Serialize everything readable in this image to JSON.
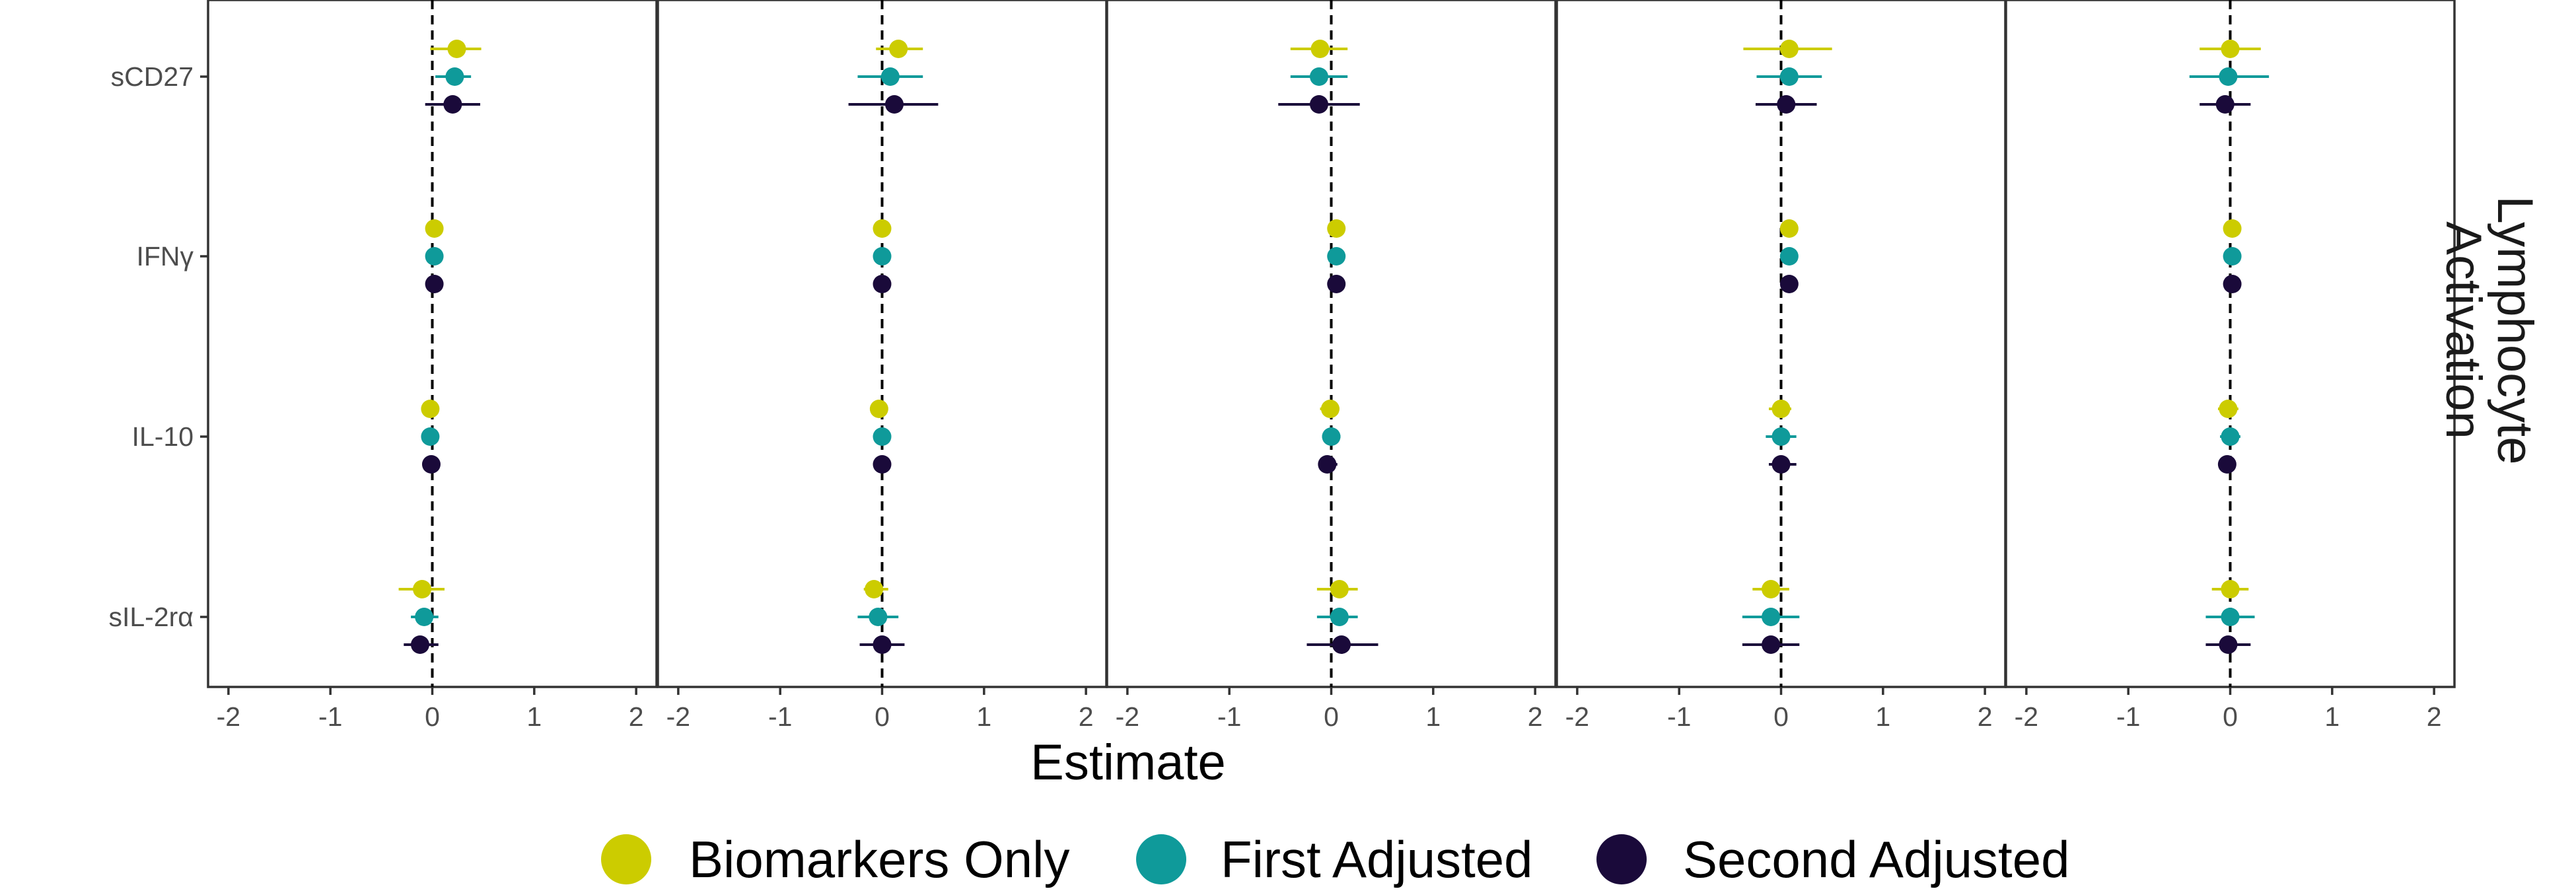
{
  "chart_data": {
    "type": "scatter",
    "subtype": "forest-plot with error bars, faceted into 5 panels",
    "xlabel": "Estimate",
    "ylabel": "",
    "xlim": [
      -2.2,
      2.2
    ],
    "x_ticks": [
      "-2",
      "-1",
      "0",
      "1",
      "2"
    ],
    "reference_line_x": 0,
    "grid": false,
    "row_strip_label": "Lymphocyte Activation",
    "categories": [
      "sCD27",
      "IFNγ",
      "IL-10",
      "sIL-2rα"
    ],
    "legend": {
      "placement": "bottom",
      "items": [
        {
          "label": "Biomarkers Only",
          "color": "#cccc00"
        },
        {
          "label": "First Adjusted",
          "color": "#0f9a9a"
        },
        {
          "label": "Second Adjusted",
          "color": "#1a0a3a"
        }
      ]
    },
    "series_colors": [
      "#cccc00",
      "#0f9a9a",
      "#1a0a3a"
    ],
    "panels": [
      {
        "rows": [
          {
            "category": "sCD27",
            "estimates": [
              {
                "x": 0.24,
                "lo": -0.02,
                "hi": 0.48
              },
              {
                "x": 0.22,
                "lo": 0.03,
                "hi": 0.38
              },
              {
                "x": 0.2,
                "lo": -0.07,
                "hi": 0.47
              }
            ]
          },
          {
            "category": "IFNγ",
            "estimates": [
              {
                "x": 0.02,
                "lo": -0.02,
                "hi": 0.06
              },
              {
                "x": 0.02,
                "lo": -0.02,
                "hi": 0.06
              },
              {
                "x": 0.02,
                "lo": -0.02,
                "hi": 0.06
              }
            ]
          },
          {
            "category": "IL-10",
            "estimates": [
              {
                "x": -0.02,
                "lo": -0.1,
                "hi": 0.05
              },
              {
                "x": -0.02,
                "lo": -0.1,
                "hi": 0.05
              },
              {
                "x": -0.01,
                "lo": -0.09,
                "hi": 0.06
              }
            ]
          },
          {
            "category": "sIL-2rα",
            "estimates": [
              {
                "x": -0.1,
                "lo": -0.33,
                "hi": 0.12
              },
              {
                "x": -0.08,
                "lo": -0.21,
                "hi": 0.06
              },
              {
                "x": -0.12,
                "lo": -0.28,
                "hi": 0.06
              }
            ]
          }
        ]
      },
      {
        "rows": [
          {
            "category": "sCD27",
            "estimates": [
              {
                "x": 0.16,
                "lo": -0.06,
                "hi": 0.4
              },
              {
                "x": 0.08,
                "lo": -0.24,
                "hi": 0.4
              },
              {
                "x": 0.12,
                "lo": -0.33,
                "hi": 0.55
              }
            ]
          },
          {
            "category": "IFNγ",
            "estimates": [
              {
                "x": 0.0,
                "lo": -0.04,
                "hi": 0.04
              },
              {
                "x": 0.0,
                "lo": -0.04,
                "hi": 0.04
              },
              {
                "x": 0.0,
                "lo": -0.04,
                "hi": 0.04
              }
            ]
          },
          {
            "category": "IL-10",
            "estimates": [
              {
                "x": -0.03,
                "lo": -0.1,
                "hi": 0.04
              },
              {
                "x": 0.0,
                "lo": -0.07,
                "hi": 0.07
              },
              {
                "x": 0.0,
                "lo": -0.07,
                "hi": 0.07
              }
            ]
          },
          {
            "category": "sIL-2rα",
            "estimates": [
              {
                "x": -0.08,
                "lo": -0.18,
                "hi": 0.06
              },
              {
                "x": -0.04,
                "lo": -0.24,
                "hi": 0.16
              },
              {
                "x": 0.0,
                "lo": -0.22,
                "hi": 0.22
              }
            ]
          }
        ]
      },
      {
        "rows": [
          {
            "category": "sCD27",
            "estimates": [
              {
                "x": -0.11,
                "lo": -0.4,
                "hi": 0.16
              },
              {
                "x": -0.12,
                "lo": -0.4,
                "hi": 0.16
              },
              {
                "x": -0.12,
                "lo": -0.52,
                "hi": 0.28
              }
            ]
          },
          {
            "category": "IFNγ",
            "estimates": [
              {
                "x": 0.05,
                "lo": 0.01,
                "hi": 0.09
              },
              {
                "x": 0.05,
                "lo": 0.01,
                "hi": 0.09
              },
              {
                "x": 0.05,
                "lo": 0.01,
                "hi": 0.09
              }
            ]
          },
          {
            "category": "IL-10",
            "estimates": [
              {
                "x": -0.01,
                "lo": -0.11,
                "hi": 0.08
              },
              {
                "x": 0.0,
                "lo": -0.09,
                "hi": 0.09
              },
              {
                "x": -0.04,
                "lo": -0.12,
                "hi": 0.06
              }
            ]
          },
          {
            "category": "sIL-2rα",
            "estimates": [
              {
                "x": 0.08,
                "lo": -0.14,
                "hi": 0.26
              },
              {
                "x": 0.08,
                "lo": -0.14,
                "hi": 0.26
              },
              {
                "x": 0.1,
                "lo": -0.24,
                "hi": 0.46
              }
            ]
          }
        ]
      },
      {
        "rows": [
          {
            "category": "sCD27",
            "estimates": [
              {
                "x": 0.08,
                "lo": -0.37,
                "hi": 0.5
              },
              {
                "x": 0.08,
                "lo": -0.24,
                "hi": 0.4
              },
              {
                "x": 0.05,
                "lo": -0.25,
                "hi": 0.35
              }
            ]
          },
          {
            "category": "IFNγ",
            "estimates": [
              {
                "x": 0.08,
                "lo": 0.04,
                "hi": 0.12
              },
              {
                "x": 0.08,
                "lo": 0.04,
                "hi": 0.12
              },
              {
                "x": 0.08,
                "lo": 0.04,
                "hi": 0.12
              }
            ]
          },
          {
            "category": "IL-10",
            "estimates": [
              {
                "x": 0.0,
                "lo": -0.12,
                "hi": 0.1
              },
              {
                "x": 0.0,
                "lo": -0.15,
                "hi": 0.15
              },
              {
                "x": 0.0,
                "lo": -0.12,
                "hi": 0.15
              }
            ]
          },
          {
            "category": "sIL-2rα",
            "estimates": [
              {
                "x": -0.1,
                "lo": -0.28,
                "hi": 0.08
              },
              {
                "x": -0.1,
                "lo": -0.38,
                "hi": 0.18
              },
              {
                "x": -0.1,
                "lo": -0.38,
                "hi": 0.18
              }
            ]
          }
        ]
      },
      {
        "rows": [
          {
            "category": "sCD27",
            "estimates": [
              {
                "x": 0.0,
                "lo": -0.3,
                "hi": 0.3
              },
              {
                "x": -0.02,
                "lo": -0.4,
                "hi": 0.38
              },
              {
                "x": -0.05,
                "lo": -0.3,
                "hi": 0.2
              }
            ]
          },
          {
            "category": "IFNγ",
            "estimates": [
              {
                "x": 0.02,
                "lo": -0.02,
                "hi": 0.06
              },
              {
                "x": 0.02,
                "lo": -0.02,
                "hi": 0.06
              },
              {
                "x": 0.02,
                "lo": -0.02,
                "hi": 0.06
              }
            ]
          },
          {
            "category": "IL-10",
            "estimates": [
              {
                "x": -0.02,
                "lo": -0.12,
                "hi": 0.08
              },
              {
                "x": 0.0,
                "lo": -0.1,
                "hi": 0.1
              },
              {
                "x": -0.03,
                "lo": -0.1,
                "hi": 0.05
              }
            ]
          },
          {
            "category": "sIL-2rα",
            "estimates": [
              {
                "x": 0.0,
                "lo": -0.18,
                "hi": 0.18
              },
              {
                "x": 0.0,
                "lo": -0.24,
                "hi": 0.24
              },
              {
                "x": -0.02,
                "lo": -0.24,
                "hi": 0.2
              }
            ]
          }
        ]
      }
    ]
  }
}
